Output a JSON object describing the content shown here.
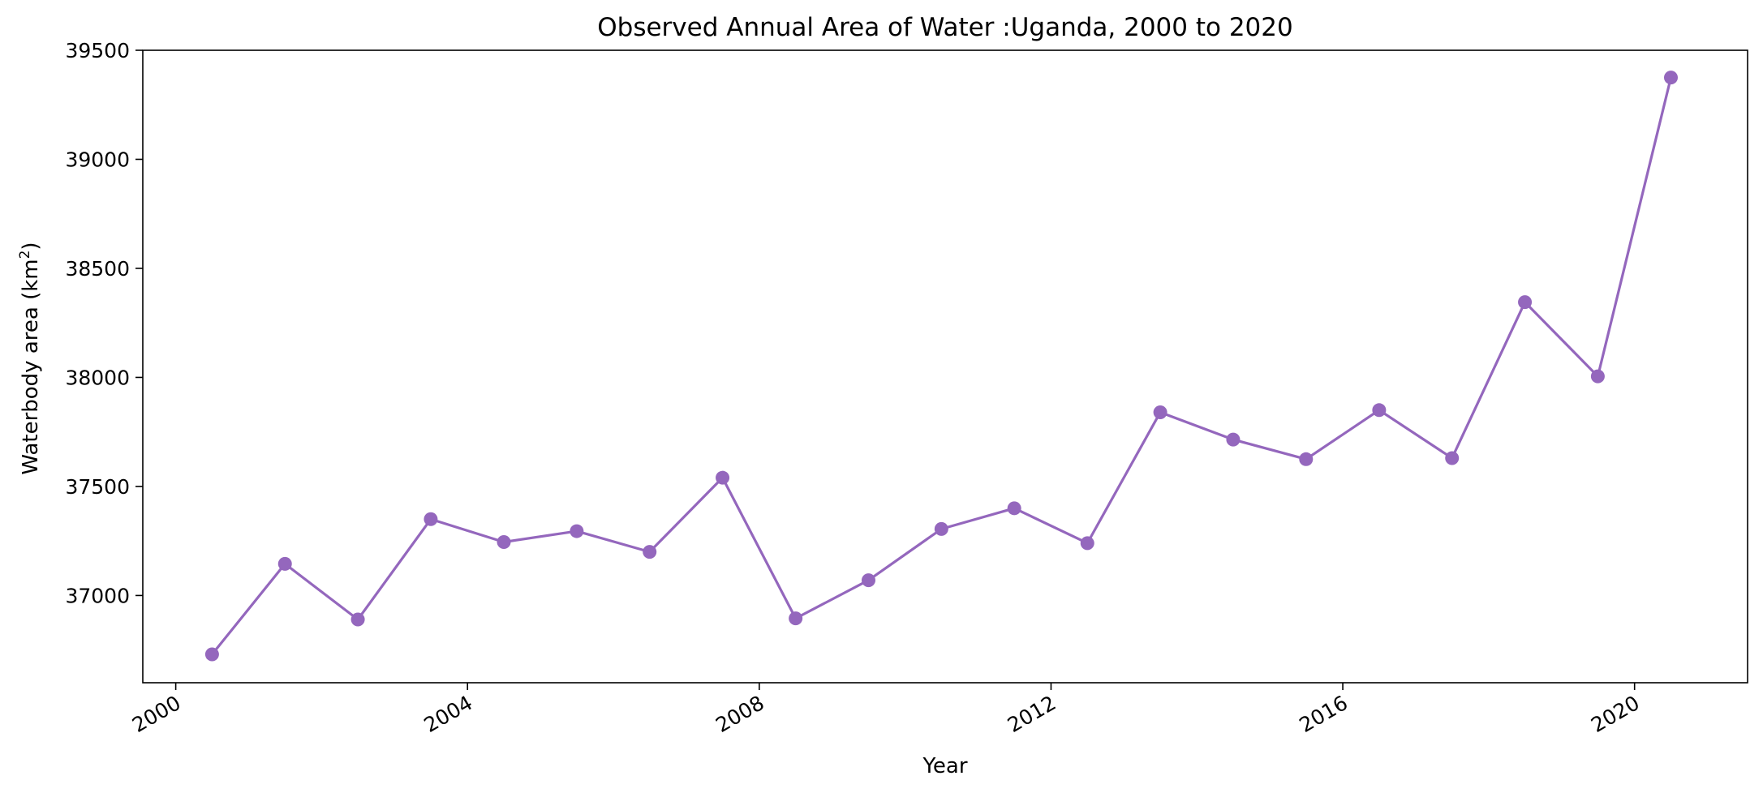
{
  "chart_data": {
    "type": "line",
    "title": "Observed Annual Area of Water :Uganda, 2000 to 2020",
    "xlabel": "Year",
    "ylabel": "Waterbody area (km²)",
    "ylabel_main": "Waterbody area (km",
    "ylabel_sup": "2",
    "ylabel_end": ")",
    "color": "#9467bd",
    "grid": false,
    "legend": "none",
    "xlim": [
      "1999-07-20",
      "2021-07-20"
    ],
    "ylim": [
      36600,
      39500
    ],
    "x_ticks": [
      {
        "date": "2000-01-01",
        "label": "2000"
      },
      {
        "date": "2004-01-01",
        "label": "2004"
      },
      {
        "date": "2008-01-01",
        "label": "2008"
      },
      {
        "date": "2012-01-01",
        "label": "2012"
      },
      {
        "date": "2016-01-01",
        "label": "2016"
      },
      {
        "date": "2020-01-01",
        "label": "2020"
      }
    ],
    "y_ticks": [
      {
        "value": 37000,
        "label": "37000"
      },
      {
        "value": 37500,
        "label": "37500"
      },
      {
        "value": 38000,
        "label": "38000"
      },
      {
        "value": 38500,
        "label": "38500"
      },
      {
        "value": 39000,
        "label": "39000"
      },
      {
        "value": 39500,
        "label": "39500"
      }
    ],
    "series": [
      {
        "x": [
          "2000-07-01",
          "2001-07-01",
          "2002-07-01",
          "2003-07-01",
          "2004-07-01",
          "2005-07-01",
          "2006-07-01",
          "2007-07-01",
          "2008-07-01",
          "2009-07-01",
          "2010-07-01",
          "2011-07-01",
          "2012-07-01",
          "2013-07-01",
          "2014-07-01",
          "2015-07-01",
          "2016-07-01",
          "2017-07-01",
          "2018-07-01",
          "2019-07-01",
          "2020-07-01"
        ],
        "y": [
          36730,
          37145,
          36890,
          37350,
          37245,
          37295,
          37200,
          37540,
          36895,
          37070,
          37305,
          37400,
          37240,
          37840,
          37715,
          37625,
          37850,
          37630,
          38345,
          38005,
          39375
        ]
      }
    ]
  }
}
